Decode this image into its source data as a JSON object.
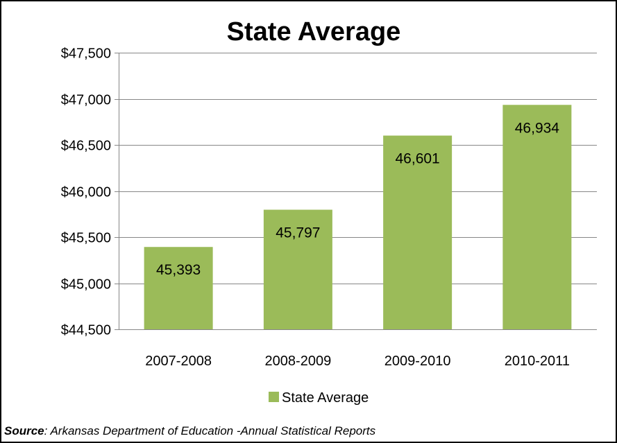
{
  "chart_data": {
    "type": "bar",
    "title": "State Average",
    "categories": [
      "2007-2008",
      "2008-2009",
      "2009-2010",
      "2010-2011"
    ],
    "series": [
      {
        "name": "State Average",
        "values": [
          45393,
          45797,
          46601,
          46934
        ],
        "data_labels": [
          "45,393",
          "45,797",
          "46,601",
          "46,934"
        ]
      }
    ],
    "ylim": [
      44500,
      47500
    ],
    "y_ticks": [
      44500,
      45000,
      45500,
      46000,
      46500,
      47000,
      47500
    ],
    "y_tick_labels": [
      "$44,500",
      "$45,000",
      "$45,500",
      "$46,000",
      "$46,500",
      "$47,000",
      "$47,500"
    ],
    "xlabel": "",
    "ylabel": "",
    "grid": true,
    "legend_position": "bottom",
    "bar_color": "#9BBB59",
    "gridline_color": "#868686"
  },
  "source": {
    "label": "Source",
    "text": ": Arkansas Department of Education -Annual Statistical Reports"
  }
}
